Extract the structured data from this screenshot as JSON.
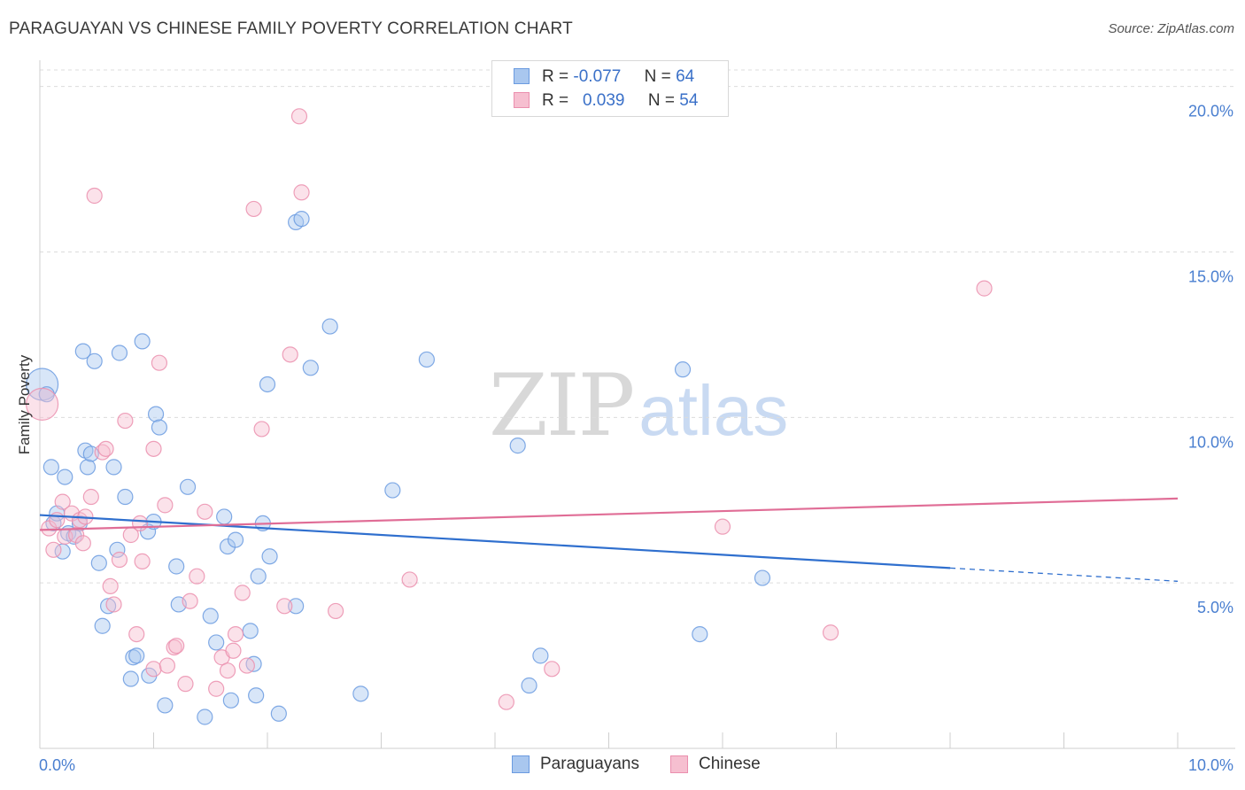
{
  "header": {
    "title": "PARAGUAYAN VS CHINESE FAMILY POVERTY CORRELATION CHART",
    "source": "Source: ZipAtlas.com"
  },
  "legend": {
    "rows": [
      {
        "r_label": "R =",
        "r_value": "-0.077",
        "n_label": "N =",
        "n_value": "64"
      },
      {
        "r_label": "R =",
        "r_value": "0.039",
        "n_label": "N =",
        "n_value": "54"
      }
    ]
  },
  "bottom_legend": {
    "items": [
      {
        "label": "Paraguayans"
      },
      {
        "label": "Chinese"
      }
    ]
  },
  "watermark": {
    "zip": "ZIP",
    "atlas": "atlas"
  },
  "colors": {
    "paraguayans_fill": "#a9c7ef",
    "paraguayans_stroke": "#6b9be0",
    "paraguayans_line": "#2f6fce",
    "chinese_fill": "#f6bfd0",
    "chinese_stroke": "#eb8fae",
    "chinese_line": "#e06d96",
    "tick_label": "#4a7fd0",
    "grid": "#dcdcdc"
  },
  "chart_data": {
    "type": "scatter",
    "title": "PARAGUAYAN VS CHINESE FAMILY POVERTY CORRELATION CHART",
    "xlabel": "",
    "ylabel": "Family Poverty",
    "xlim": [
      0,
      10
    ],
    "ylim": [
      0,
      20.5
    ],
    "x_tick_labels": [
      "0.0%",
      "10.0%"
    ],
    "y_ticks": [
      5,
      10,
      15,
      20
    ],
    "y_tick_labels": [
      "5.0%",
      "10.0%",
      "15.0%",
      "20.0%"
    ],
    "grid": true,
    "legend_position": "top-center",
    "series": [
      {
        "name": "Paraguayans",
        "r": -0.077,
        "n": 64,
        "trend": {
          "x0": 0,
          "y0": 7.05,
          "x1": 8.0,
          "y1": 5.45,
          "dashed_to_x": 10,
          "dashed_to_y": 5.05
        },
        "points": [
          [
            0.02,
            11.0
          ],
          [
            0.06,
            10.7
          ],
          [
            0.1,
            8.5
          ],
          [
            0.12,
            6.8
          ],
          [
            0.15,
            7.1
          ],
          [
            0.2,
            5.95
          ],
          [
            0.22,
            8.2
          ],
          [
            0.25,
            6.5
          ],
          [
            0.3,
            6.4
          ],
          [
            0.35,
            6.8
          ],
          [
            0.38,
            12.0
          ],
          [
            0.4,
            9.0
          ],
          [
            0.42,
            8.5
          ],
          [
            0.45,
            8.9
          ],
          [
            0.48,
            11.7
          ],
          [
            0.52,
            5.6
          ],
          [
            0.55,
            3.7
          ],
          [
            0.6,
            4.3
          ],
          [
            0.65,
            8.5
          ],
          [
            0.68,
            6.0
          ],
          [
            0.7,
            11.95
          ],
          [
            0.75,
            7.6
          ],
          [
            0.8,
            2.1
          ],
          [
            0.82,
            2.75
          ],
          [
            0.85,
            2.8
          ],
          [
            0.9,
            12.3
          ],
          [
            0.95,
            6.55
          ],
          [
            0.96,
            2.2
          ],
          [
            1.0,
            6.85
          ],
          [
            1.02,
            10.1
          ],
          [
            1.05,
            9.7
          ],
          [
            1.1,
            1.3
          ],
          [
            1.2,
            5.5
          ],
          [
            1.22,
            4.35
          ],
          [
            1.3,
            7.9
          ],
          [
            1.45,
            0.95
          ],
          [
            1.5,
            4.0
          ],
          [
            1.55,
            3.2
          ],
          [
            1.62,
            7.0
          ],
          [
            1.65,
            6.1
          ],
          [
            1.68,
            1.45
          ],
          [
            1.72,
            6.3
          ],
          [
            1.85,
            3.55
          ],
          [
            1.88,
            2.55
          ],
          [
            1.9,
            1.6
          ],
          [
            1.92,
            5.2
          ],
          [
            1.96,
            6.8
          ],
          [
            2.0,
            11.0
          ],
          [
            2.02,
            5.8
          ],
          [
            2.1,
            1.05
          ],
          [
            2.25,
            4.3
          ],
          [
            2.25,
            15.9
          ],
          [
            2.3,
            16.0
          ],
          [
            2.38,
            11.5
          ],
          [
            2.55,
            12.75
          ],
          [
            2.82,
            1.65
          ],
          [
            3.1,
            7.8
          ],
          [
            3.4,
            11.75
          ],
          [
            4.2,
            9.15
          ],
          [
            4.3,
            1.9
          ],
          [
            4.4,
            2.8
          ],
          [
            5.65,
            11.45
          ],
          [
            5.8,
            3.45
          ],
          [
            6.35,
            5.15
          ]
        ]
      },
      {
        "name": "Chinese",
        "r": 0.039,
        "n": 54,
        "trend": {
          "x0": 0,
          "y0": 6.6,
          "x1": 10,
          "y1": 7.55
        },
        "points": [
          [
            0.02,
            10.4
          ],
          [
            0.08,
            6.65
          ],
          [
            0.12,
            6.0
          ],
          [
            0.15,
            6.9
          ],
          [
            0.2,
            7.45
          ],
          [
            0.22,
            6.4
          ],
          [
            0.28,
            7.1
          ],
          [
            0.32,
            6.45
          ],
          [
            0.35,
            6.9
          ],
          [
            0.38,
            6.2
          ],
          [
            0.4,
            7.0
          ],
          [
            0.45,
            7.6
          ],
          [
            0.48,
            16.7
          ],
          [
            0.55,
            8.95
          ],
          [
            0.58,
            9.05
          ],
          [
            0.62,
            4.9
          ],
          [
            0.65,
            4.35
          ],
          [
            0.7,
            5.7
          ],
          [
            0.75,
            9.9
          ],
          [
            0.8,
            6.45
          ],
          [
            0.85,
            3.45
          ],
          [
            0.88,
            6.8
          ],
          [
            0.9,
            5.65
          ],
          [
            1.0,
            2.4
          ],
          [
            1.0,
            9.05
          ],
          [
            1.05,
            11.65
          ],
          [
            1.1,
            7.35
          ],
          [
            1.12,
            2.5
          ],
          [
            1.18,
            3.05
          ],
          [
            1.2,
            3.1
          ],
          [
            1.28,
            1.95
          ],
          [
            1.32,
            4.45
          ],
          [
            1.38,
            5.2
          ],
          [
            1.45,
            7.15
          ],
          [
            1.55,
            1.8
          ],
          [
            1.6,
            2.75
          ],
          [
            1.65,
            2.35
          ],
          [
            1.7,
            2.95
          ],
          [
            1.72,
            3.45
          ],
          [
            1.78,
            4.7
          ],
          [
            1.82,
            2.5
          ],
          [
            1.88,
            16.3
          ],
          [
            1.95,
            9.65
          ],
          [
            2.15,
            4.3
          ],
          [
            2.2,
            11.9
          ],
          [
            2.28,
            19.1
          ],
          [
            2.3,
            16.8
          ],
          [
            2.6,
            4.15
          ],
          [
            3.25,
            5.1
          ],
          [
            4.1,
            1.4
          ],
          [
            4.5,
            2.4
          ],
          [
            6.0,
            6.7
          ],
          [
            6.95,
            3.5
          ],
          [
            8.3,
            13.9
          ]
        ]
      }
    ]
  }
}
